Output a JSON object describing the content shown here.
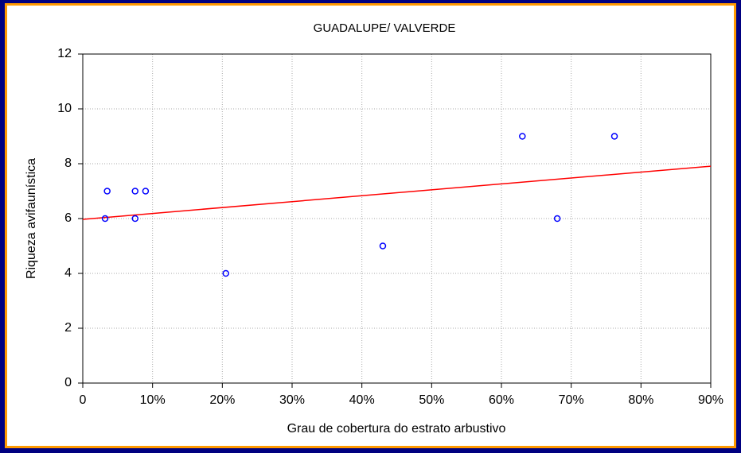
{
  "chart_data": {
    "type": "scatter",
    "title": "GUADALUPE/ VALVERDE",
    "x_label": "Grau de cobertura do estrato arbustivo",
    "y_label": "Riqueza avifaunística",
    "x": [
      3.2,
      3.5,
      7.5,
      7.5,
      9,
      20.5,
      43,
      63,
      68,
      76.2
    ],
    "y": [
      6,
      7,
      7,
      6,
      7,
      4,
      5,
      9,
      6,
      9
    ],
    "color": "#0000ff",
    "trend_line": {
      "x": [
        0,
        90
      ],
      "y": [
        5.97,
        7.91
      ],
      "color": "#ff0000"
    },
    "xlim": [
      0,
      90
    ],
    "ylim": [
      0,
      12
    ],
    "xticks": [
      0,
      {
        "value": 10,
        "label": "10%"
      },
      {
        "value": 20,
        "label": "20%"
      },
      {
        "value": 30,
        "label": "30%"
      },
      {
        "value": 40,
        "label": "40%"
      },
      {
        "value": 50,
        "label": "50%"
      },
      {
        "value": 60,
        "label": "60%"
      },
      {
        "value": 70,
        "label": "70%"
      },
      {
        "value": 80,
        "label": "80%"
      },
      {
        "value": 90,
        "label": "90%"
      }
    ],
    "yticks": [
      0,
      2,
      4,
      6,
      8,
      10,
      12
    ],
    "grid": true
  }
}
